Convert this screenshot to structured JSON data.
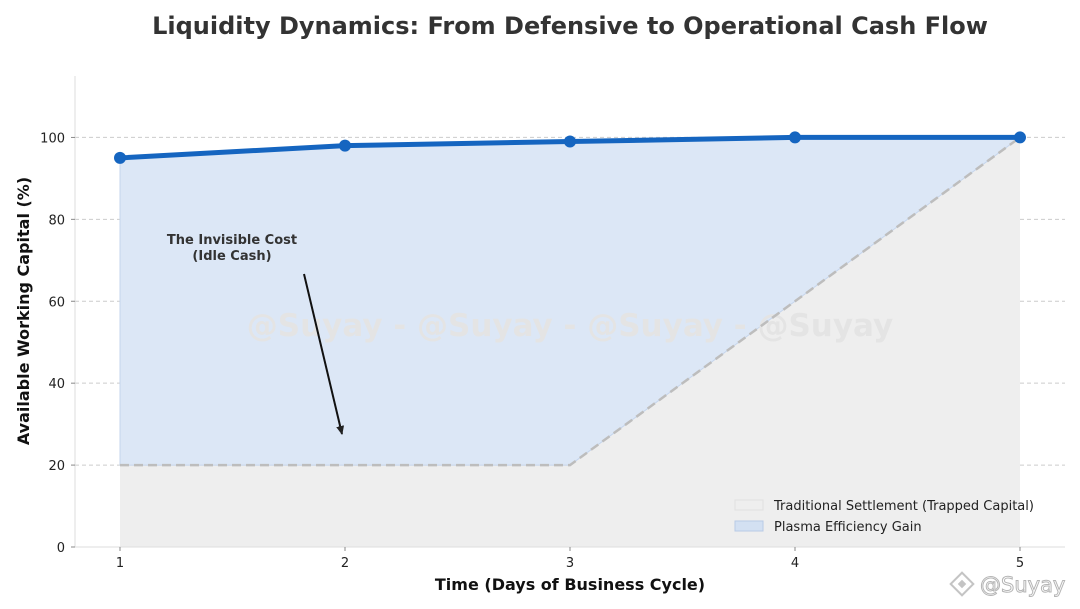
{
  "chart_data": {
    "type": "area",
    "title": "Liquidity Dynamics: From Defensive to Operational Cash Flow",
    "xlabel": "Time (Days of Business Cycle)",
    "ylabel": "Available Working Capital (%)",
    "x": [
      1,
      2,
      3,
      4,
      5
    ],
    "xlim": [
      0.8,
      5.2
    ],
    "ylim": [
      0,
      115
    ],
    "yticks": [
      0,
      20,
      40,
      60,
      80,
      100
    ],
    "xticks": [
      1,
      2,
      3,
      4,
      5
    ],
    "grid": "horizontal dashed",
    "series": [
      {
        "name": "Traditional Settlement (Trapped Capital)",
        "values": [
          20,
          20,
          20,
          60,
          100
        ],
        "style": "dashed-line-with-fill",
        "color": "#bdbdbd",
        "fill": "#eeeeee"
      },
      {
        "name": "Plasma Efficiency Gain",
        "values": [
          95,
          98,
          99,
          100,
          100
        ],
        "style": "line-with-markers-and-fill",
        "color": "#1565c0",
        "fill": "#dce7f6"
      }
    ],
    "legend": {
      "position": "lower-right",
      "entries": [
        "Traditional Settlement (Trapped Capital)",
        "Plasma Efficiency Gain"
      ]
    },
    "annotation": {
      "lines": [
        "The Invisible Cost",
        "(Idle Cash)"
      ],
      "arrow_to": {
        "x": 2,
        "y": 27
      }
    },
    "watermark": "@Suyay - @Suyay - @Suyay - @Suyay",
    "corner_watermark": "@Suyay"
  }
}
